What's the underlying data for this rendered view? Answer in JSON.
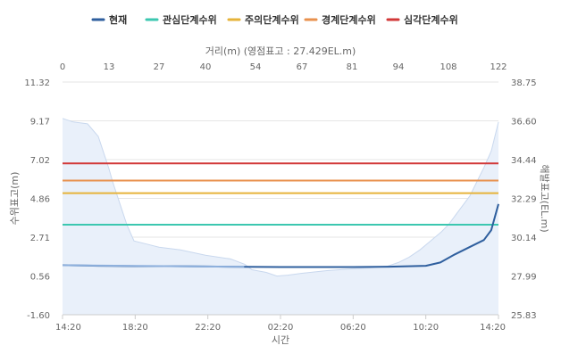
{
  "chart_data": {
    "type": "line",
    "legend": {
      "placement": "top-center",
      "items": [
        {
          "name": "현재",
          "color": "#2f5f9e"
        },
        {
          "name": "관심단계수위",
          "color": "#3cc7b0"
        },
        {
          "name": "주의단계수위",
          "color": "#e6b33a"
        },
        {
          "name": "경계단계수위",
          "color": "#e8914e"
        },
        {
          "name": "심각단계수위",
          "color": "#d23838"
        }
      ]
    },
    "x_axis": {
      "title": "시간",
      "tick_labels": [
        "14:20",
        "18:20",
        "22:20",
        "02:20",
        "06:20",
        "10:20",
        "14:20"
      ]
    },
    "x2_axis": {
      "title": "거리(m) (영점표고 : 27.429EL.m)",
      "range": [
        0,
        122
      ],
      "tick_labels": [
        "0",
        "13",
        "27",
        "40",
        "54",
        "67",
        "81",
        "94",
        "108",
        "122"
      ]
    },
    "y_axis": {
      "title": "수위표고(m)",
      "range": [
        -1.6,
        11.32
      ],
      "tick_labels": [
        "11.32",
        "9.17",
        "7.02",
        "4.86",
        "2.71",
        "0.56",
        "-1.60"
      ]
    },
    "y2_axis": {
      "title": "해발표고(EL.m)",
      "range": [
        25.83,
        38.75
      ],
      "tick_labels": [
        "38.75",
        "36.60",
        "34.44",
        "32.29",
        "30.14",
        "27.99",
        "25.83"
      ]
    },
    "grid": true,
    "thresholds": [
      {
        "name": "관심단계수위",
        "value": 3.4,
        "color": "#3cc7b0"
      },
      {
        "name": "주의단계수위",
        "value": 5.15,
        "color": "#e6b33a"
      },
      {
        "name": "경계단계수위",
        "value": 5.85,
        "color": "#e8914e"
      },
      {
        "name": "심각단계수위",
        "value": 6.8,
        "color": "#d23838"
      }
    ],
    "cross_section": {
      "x_m": [
        0,
        3,
        7,
        10,
        13,
        14,
        16,
        18,
        20,
        24,
        27,
        33,
        40,
        47,
        51,
        53,
        57,
        60,
        63,
        67,
        74,
        81,
        86,
        91,
        94,
        97,
        100,
        103,
        106,
        108,
        111,
        114,
        116,
        118,
        120,
        122
      ],
      "elevation_m": [
        9.3,
        9.1,
        9.0,
        8.3,
        6.5,
        5.8,
        4.6,
        3.4,
        2.5,
        2.3,
        2.15,
        2.0,
        1.7,
        1.5,
        1.2,
        0.9,
        0.75,
        0.55,
        0.6,
        0.7,
        0.85,
        0.95,
        1.0,
        1.1,
        1.3,
        1.6,
        2.0,
        2.5,
        3.0,
        3.4,
        4.2,
        5.0,
        5.8,
        6.6,
        7.5,
        9.1
      ]
    },
    "series": [
      {
        "name": "현재",
        "color": "#2f5f9e",
        "x_index": [
          0,
          0.5,
          1,
          1.5,
          2,
          2.5,
          3,
          3.5,
          4,
          4.5,
          5,
          5.2,
          5.4,
          5.6,
          5.8,
          5.9,
          6
        ],
        "values": [
          1.15,
          1.12,
          1.1,
          1.1,
          1.08,
          1.06,
          1.05,
          1.05,
          1.05,
          1.07,
          1.12,
          1.3,
          1.75,
          2.15,
          2.55,
          3.1,
          4.55
        ]
      }
    ]
  }
}
